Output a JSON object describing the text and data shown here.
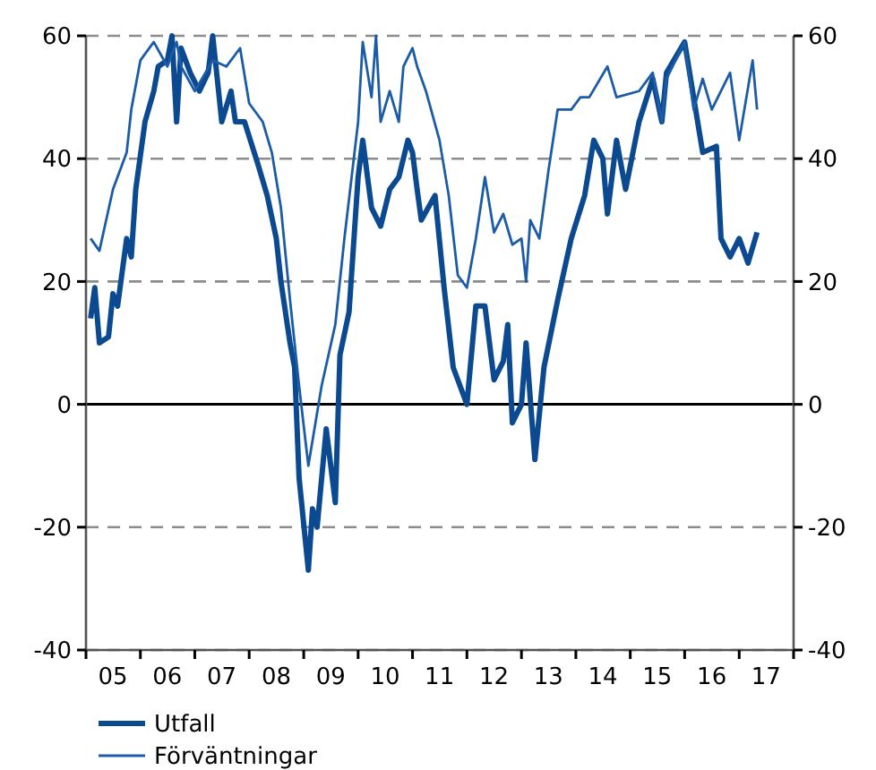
{
  "chart_data": {
    "type": "line",
    "xlim": [
      "2005-01-01",
      "2018-01-01"
    ],
    "xticks": [
      {
        "value": "2005-01-01",
        "label": null
      },
      {
        "value": "2005-07-01",
        "label": "05"
      },
      {
        "value": "2006-01-01",
        "label": null
      },
      {
        "value": "2006-07-01",
        "label": "06"
      },
      {
        "value": "2007-01-01",
        "label": null
      },
      {
        "value": "2007-07-01",
        "label": "07"
      },
      {
        "value": "2008-01-01",
        "label": null
      },
      {
        "value": "2008-07-01",
        "label": "08"
      },
      {
        "value": "2009-01-01",
        "label": null
      },
      {
        "value": "2009-07-01",
        "label": "09"
      },
      {
        "value": "2010-01-01",
        "label": null
      },
      {
        "value": "2010-07-01",
        "label": "10"
      },
      {
        "value": "2011-01-01",
        "label": null
      },
      {
        "value": "2011-07-01",
        "label": "11"
      },
      {
        "value": "2012-01-01",
        "label": null
      },
      {
        "value": "2012-07-01",
        "label": "12"
      },
      {
        "value": "2013-01-01",
        "label": null
      },
      {
        "value": "2013-07-01",
        "label": "13"
      },
      {
        "value": "2014-01-01",
        "label": null
      },
      {
        "value": "2014-07-01",
        "label": "14"
      },
      {
        "value": "2015-01-01",
        "label": null
      },
      {
        "value": "2015-07-01",
        "label": "15"
      },
      {
        "value": "2016-01-01",
        "label": null
      },
      {
        "value": "2016-07-01",
        "label": "16"
      },
      {
        "value": "2017-01-01",
        "label": null
      },
      {
        "value": "2017-07-01",
        "label": "17"
      },
      {
        "value": "2018-01-01",
        "label": null
      }
    ],
    "ylim": [
      -40,
      60
    ],
    "yticks": [
      -40,
      -20,
      0,
      20,
      40,
      60
    ],
    "y2lim": [
      -40,
      60
    ],
    "y2ticks": [
      -40,
      -20,
      0,
      20,
      40,
      60
    ],
    "grid": "y",
    "legend": "bottom",
    "line_style": "solid",
    "marker": "none",
    "ref_lines": [
      {
        "axis": "y",
        "value": 0,
        "color": "#000000"
      }
    ],
    "series": [
      {
        "name": "Utfall",
        "color": "#0b4a90",
        "x": [
          "2005-02",
          "2005-03",
          "2005-04",
          "2005-06",
          "2005-07",
          "2005-08",
          "2005-10",
          "2005-11",
          "2005-12",
          "2006-02",
          "2006-04",
          "2006-05",
          "2006-07",
          "2006-08",
          "2006-09",
          "2006-10",
          "2006-12",
          "2007-02",
          "2007-04",
          "2007-05",
          "2007-06",
          "2007-07",
          "2007-09",
          "2007-10",
          "2007-12",
          "2008-03",
          "2008-05",
          "2008-07",
          "2008-08",
          "2008-10",
          "2008-11",
          "2008-12",
          "2009-02",
          "2009-03",
          "2009-04",
          "2009-06",
          "2009-08",
          "2009-09",
          "2009-11",
          "2010-01",
          "2010-02",
          "2010-04",
          "2010-06",
          "2010-08",
          "2010-10",
          "2010-12",
          "2011-01",
          "2011-02",
          "2011-03",
          "2011-06",
          "2011-08",
          "2011-10",
          "2012-01",
          "2012-03",
          "2012-05",
          "2012-07",
          "2012-09",
          "2012-10",
          "2012-11",
          "2013-01",
          "2013-02",
          "2013-04",
          "2013-06",
          "2013-09",
          "2013-12",
          "2014-03",
          "2014-05",
          "2014-07",
          "2014-08",
          "2014-10",
          "2014-12",
          "2015-03",
          "2015-06",
          "2015-08",
          "2015-09",
          "2016-01",
          "2016-03",
          "2016-05",
          "2016-08",
          "2016-09",
          "2016-11",
          "2017-01",
          "2017-03",
          "2017-05"
        ],
        "values": [
          14,
          19,
          10,
          11,
          18,
          16,
          27,
          24,
          35,
          46,
          51,
          55,
          56,
          60,
          46,
          58,
          54,
          51,
          54,
          60,
          53,
          46,
          51,
          46,
          46,
          39,
          34,
          27,
          20,
          10,
          6,
          -12,
          -27,
          -17,
          -20,
          -4,
          -16,
          8,
          15,
          37,
          43,
          32,
          29,
          35,
          37,
          43,
          41,
          35,
          30,
          34,
          19,
          6,
          0,
          16,
          16,
          4,
          7,
          13,
          -3,
          0,
          10,
          -9,
          6,
          17,
          27,
          34,
          43,
          40,
          31,
          43,
          35,
          46,
          53,
          46,
          54,
          59,
          50,
          41,
          42,
          27,
          24,
          27,
          23,
          28
        ]
      },
      {
        "name": "Förväntningar",
        "color": "#1c5ca6",
        "x": [
          "2005-02",
          "2005-04",
          "2005-07",
          "2005-10",
          "2005-11",
          "2006-01",
          "2006-04",
          "2006-07",
          "2006-09",
          "2006-10",
          "2007-01",
          "2007-05",
          "2007-08",
          "2007-11",
          "2008-01",
          "2008-04",
          "2008-06",
          "2008-08",
          "2008-10",
          "2008-12",
          "2009-02",
          "2009-05",
          "2009-08",
          "2009-10",
          "2010-01",
          "2010-02",
          "2010-04",
          "2010-05",
          "2010-06",
          "2010-08",
          "2010-10",
          "2010-11",
          "2011-01",
          "2011-02",
          "2011-04",
          "2011-07",
          "2011-09",
          "2011-11",
          "2012-01",
          "2012-03",
          "2012-04",
          "2012-05",
          "2012-07",
          "2012-09",
          "2012-11",
          "2013-01",
          "2013-02",
          "2013-03",
          "2013-05",
          "2013-07",
          "2013-09",
          "2013-12",
          "2014-02",
          "2014-04",
          "2014-08",
          "2014-10",
          "2015-03",
          "2015-06",
          "2015-08",
          "2015-09",
          "2016-01",
          "2016-03",
          "2016-05",
          "2016-07",
          "2016-11",
          "2017-01",
          "2017-04",
          "2017-05"
        ],
        "values": [
          27,
          25,
          35,
          41,
          48,
          56,
          59,
          55,
          59,
          55,
          51,
          56,
          55,
          58,
          49,
          46,
          41,
          32,
          17,
          3,
          -10,
          3,
          13,
          27,
          46,
          59,
          50,
          60,
          46,
          51,
          46,
          55,
          58,
          55,
          51,
          43,
          34,
          21,
          19,
          27,
          32,
          37,
          28,
          31,
          26,
          27,
          20,
          30,
          27,
          38,
          48,
          48,
          50,
          50,
          55,
          50,
          51,
          54,
          46,
          53,
          59,
          48,
          53,
          48,
          54,
          43,
          56,
          48
        ]
      }
    ]
  }
}
